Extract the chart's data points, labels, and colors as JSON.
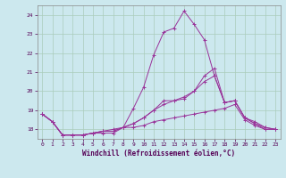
{
  "title": "",
  "xlabel": "Windchill (Refroidissement éolien,°C)",
  "ylabel": "",
  "bg_color": "#cce8ee",
  "line_color": "#993399",
  "grid_color": "#aaccbb",
  "xlim": [
    -0.5,
    23.5
  ],
  "ylim": [
    17.5,
    24.5
  ],
  "yticks": [
    18,
    19,
    20,
    21,
    22,
    23,
    24
  ],
  "xticks": [
    0,
    1,
    2,
    3,
    4,
    5,
    6,
    7,
    8,
    9,
    10,
    11,
    12,
    13,
    14,
    15,
    16,
    17,
    18,
    19,
    20,
    21,
    22,
    23
  ],
  "series": [
    [
      18.8,
      18.4,
      17.7,
      17.7,
      17.7,
      17.8,
      17.8,
      17.8,
      18.1,
      18.1,
      18.2,
      18.4,
      18.5,
      18.6,
      18.7,
      18.8,
      18.9,
      19.0,
      19.1,
      19.3,
      18.5,
      18.2,
      18.0,
      18.0
    ],
    [
      18.8,
      18.4,
      17.7,
      17.7,
      17.7,
      17.8,
      17.9,
      18.0,
      18.1,
      18.3,
      18.6,
      19.0,
      19.5,
      19.5,
      19.6,
      20.0,
      20.5,
      20.8,
      19.4,
      19.5,
      18.6,
      18.4,
      18.1,
      18.0
    ],
    [
      18.8,
      18.4,
      17.7,
      17.7,
      17.7,
      17.8,
      17.9,
      17.9,
      18.1,
      19.1,
      20.2,
      21.9,
      23.1,
      23.3,
      24.2,
      23.5,
      22.7,
      20.8,
      19.4,
      19.5,
      18.6,
      18.3,
      18.1,
      18.0
    ],
    [
      18.8,
      18.4,
      17.7,
      17.7,
      17.7,
      17.8,
      17.9,
      17.9,
      18.1,
      18.3,
      18.6,
      19.0,
      19.3,
      19.5,
      19.7,
      20.0,
      20.8,
      21.2,
      19.4,
      19.5,
      18.6,
      18.3,
      18.0,
      18.0
    ]
  ]
}
